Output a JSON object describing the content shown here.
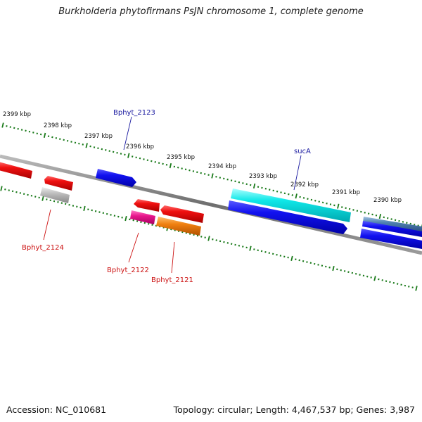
{
  "title": "Burkholderia phytofirmans PsJN chromosome 1, complete genome",
  "footer": {
    "accession": "Accession: NC_010681",
    "summary": "Topology: circular; Length: 4,467,537 bp; Genes: 3,987"
  },
  "scale": {
    "color": "#1a7a1a",
    "labels": [
      "2399 kbp",
      "2398 kbp",
      "2397 kbp",
      "2396 kbp",
      "2395 kbp",
      "2394 kbp",
      "2393 kbp",
      "2392 kbp",
      "2391 kbp",
      "2390 kbp"
    ]
  },
  "gene_labels": [
    {
      "name": "Bphyt_2123",
      "color": "#1a1aa0"
    },
    {
      "name": "sucA",
      "color": "#1a1aa0"
    },
    {
      "name": "Bphyt_2124",
      "color": "#cc1111"
    },
    {
      "name": "Bphyt_2122",
      "color": "#cc1111"
    },
    {
      "name": "Bphyt_2121",
      "color": "#cc1111"
    }
  ],
  "colors": {
    "backbone": "#777777",
    "cds_forward": "#1010e0",
    "cds_reverse": "#ee1111",
    "rna": "#00dddd",
    "pseudo": "#bbbbbb",
    "magenta": "#e8168c",
    "orange": "#f08010",
    "steel": "#4d7fb0"
  }
}
